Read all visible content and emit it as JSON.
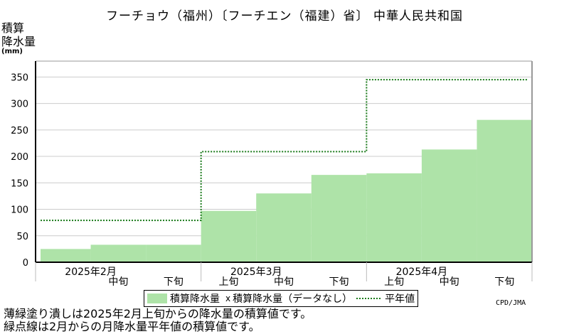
{
  "title": "フーチョウ（福州）〔フーチエン（福建）省〕 中華人民共和国",
  "credit": "CPD/JMA",
  "notes": [
    "薄緑塗り潰しは2025年2月上旬からの降水量の積算値です。",
    "緑点線は2月からの月降水量平年値の積算値です。"
  ],
  "colors": {
    "fill": "#aee3a8",
    "normal_line": "#1a7a1a",
    "grid": "#cccccc"
  },
  "chart_data": {
    "type": "area",
    "title": "フーチョウ（福州）〔フーチエン（福建）省〕 中華人民共和国",
    "ylabel": [
      "積算",
      "降水量"
    ],
    "yunit": "(mm)",
    "ylim": [
      0,
      380
    ],
    "yticks": [
      0,
      50,
      100,
      150,
      200,
      250,
      300,
      350
    ],
    "periods": [
      "2月上旬",
      "2月中旬",
      "2月下旬",
      "3月上旬",
      "3月中旬",
      "3月下旬",
      "4月上旬",
      "4月中旬",
      "4月下旬"
    ],
    "dekad_labels": [
      "中旬",
      "下旬",
      "上旬",
      "中旬",
      "下旬",
      "上旬",
      "中旬",
      "下旬"
    ],
    "dekad_label_periods": [
      1,
      2,
      3,
      4,
      5,
      6,
      7,
      8
    ],
    "month_labels": [
      "2025年2月",
      "2025年3月",
      "2025年4月"
    ],
    "month_label_periods": [
      0.5,
      3.5,
      6.5
    ],
    "series": [
      {
        "name": "積算降水量",
        "type": "step-fill",
        "values": [
          25,
          33,
          33,
          97,
          130,
          165,
          168,
          213,
          269
        ]
      },
      {
        "name": "積算降水量平年値",
        "type": "step-dotted",
        "values": [
          79,
          79,
          79,
          209,
          209,
          209,
          345,
          345,
          345
        ]
      }
    ],
    "missing_marker_label": "積算降水量（データなし）",
    "legend": [
      "積算降水量",
      "積算降水量（データなし）",
      "平年値"
    ],
    "legend_position": "bottom",
    "grid": true
  }
}
